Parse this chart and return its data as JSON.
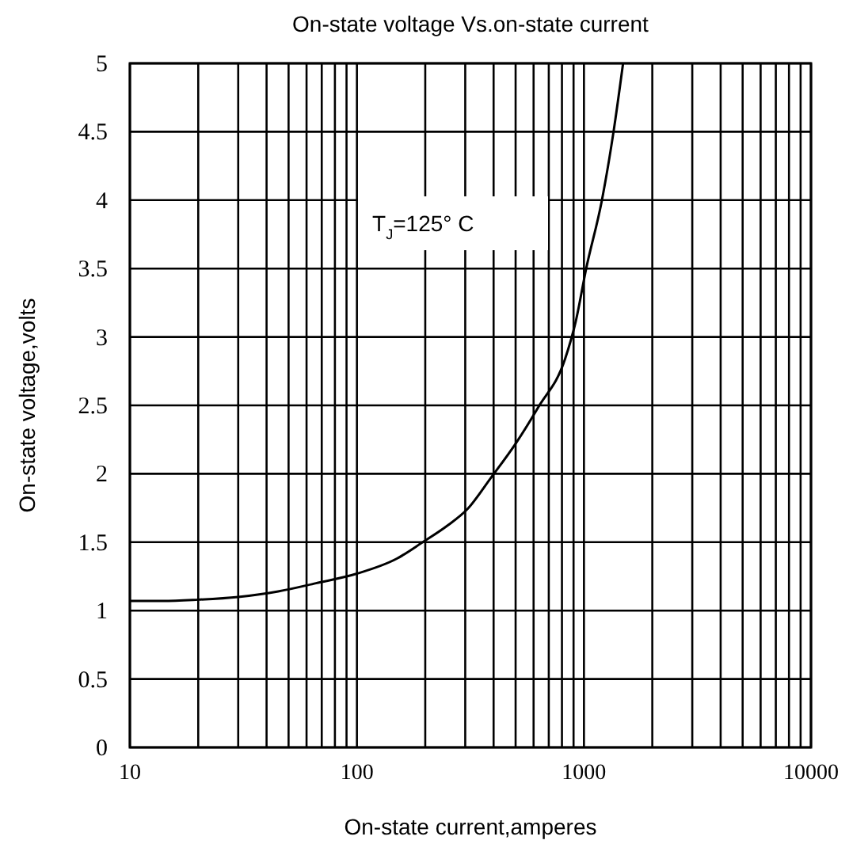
{
  "chart_data": {
    "type": "line",
    "title": "On-state voltage Vs.on-state current",
    "xlabel": "On-state current,amperes",
    "ylabel": "On-state voltage,volts",
    "log": "x",
    "grid": true,
    "marker": "none",
    "line_style": "solid",
    "annotations": [
      "T$_{J}$=125° C"
    ],
    "xlim": [
      10,
      10000
    ],
    "ylim": [
      0,
      5
    ],
    "xticks": [
      10,
      {
        "value": 20,
        "label": null
      },
      {
        "value": 30,
        "label": null
      },
      {
        "value": 40,
        "label": null
      },
      {
        "value": 50,
        "label": null
      },
      {
        "value": 60,
        "label": null
      },
      {
        "value": 70,
        "label": null
      },
      {
        "value": 80,
        "label": null
      },
      {
        "value": 90,
        "label": null
      },
      100,
      {
        "value": 200,
        "label": null
      },
      {
        "value": 300,
        "label": null
      },
      {
        "value": 400,
        "label": null
      },
      {
        "value": 500,
        "label": null
      },
      {
        "value": 600,
        "label": null
      },
      {
        "value": 700,
        "label": null
      },
      {
        "value": 800,
        "label": null
      },
      {
        "value": 900,
        "label": null
      },
      1000,
      {
        "value": 2000,
        "label": null
      },
      {
        "value": 3000,
        "label": null
      },
      {
        "value": 4000,
        "label": null
      },
      {
        "value": 5000,
        "label": null
      },
      {
        "value": 6000,
        "label": null
      },
      {
        "value": 7000,
        "label": null
      },
      {
        "value": 8000,
        "label": null
      },
      {
        "value": 9000,
        "label": null
      },
      10000
    ],
    "yticks": [
      0,
      0.5,
      1,
      1.5,
      2,
      2.5,
      3,
      3.5,
      4,
      4.5,
      5
    ],
    "series": [
      {
        "color": "#000000",
        "x": [
          10,
          14,
          20,
          30,
          45,
          66,
          100,
          150,
          195,
          250,
          306,
          389,
          500,
          631,
          826,
          919,
          1023,
          1200,
          1350,
          1487
        ],
        "values": [
          1.07,
          1.07,
          1.08,
          1.1,
          1.14,
          1.2,
          1.27,
          1.38,
          1.5,
          1.62,
          1.74,
          1.97,
          2.22,
          2.49,
          2.84,
          3.11,
          3.5,
          4.0,
          4.5,
          5.0
        ]
      }
    ]
  }
}
